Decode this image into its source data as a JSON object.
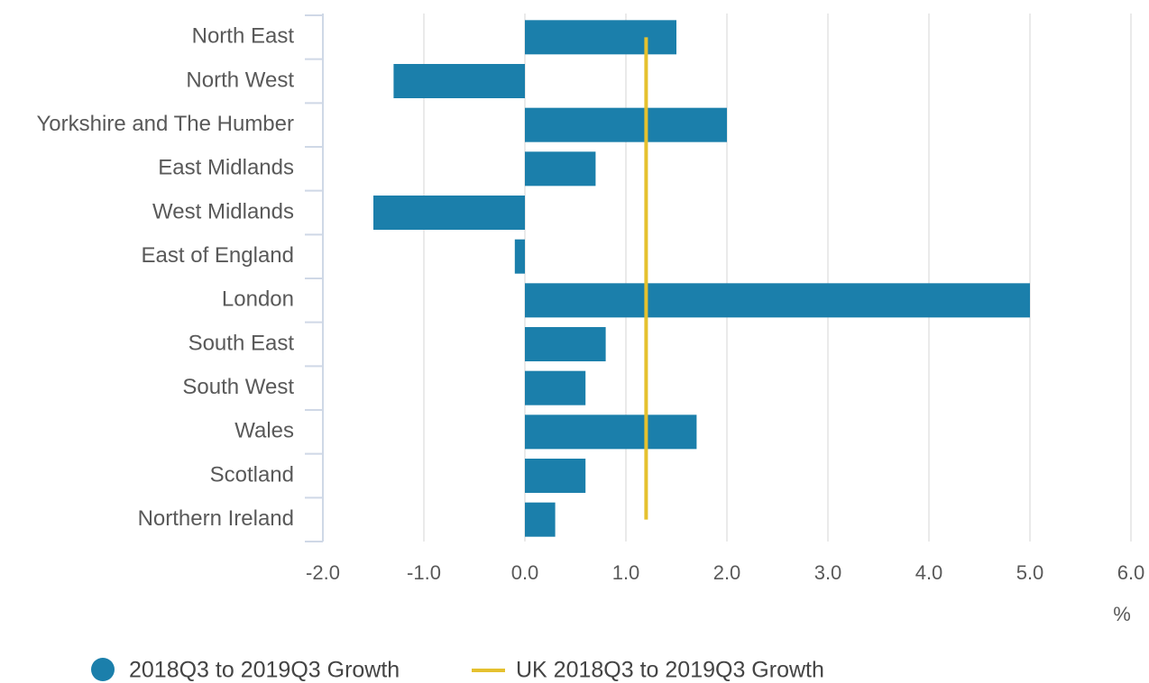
{
  "chart_data": {
    "type": "hbar",
    "categories": [
      "North East",
      "North West",
      "Yorkshire and The Humber",
      "East Midlands",
      "West Midlands",
      "East of England",
      "London",
      "South East",
      "South West",
      "Wales",
      "Scotland",
      "Northern Ireland"
    ],
    "series": [
      {
        "name": "2018Q3 to 2019Q3 Growth",
        "color": "#1b7fab",
        "values": [
          1.5,
          -1.3,
          2.0,
          0.7,
          -1.5,
          -0.1,
          5.0,
          0.8,
          0.6,
          1.7,
          0.6,
          0.3
        ]
      }
    ],
    "reference_line": {
      "name": "UK 2018Q3 to 2019Q3 Growth",
      "color": "#e5c12f",
      "value": 1.2
    },
    "xlim": [
      -2,
      6
    ],
    "xticks": [
      {
        "value": -2,
        "label": "-2.0"
      },
      {
        "value": -1,
        "label": "-1.0"
      },
      {
        "value": 0,
        "label": "0.0"
      },
      {
        "value": 1,
        "label": "1.0"
      },
      {
        "value": 2,
        "label": "2.0"
      },
      {
        "value": 3,
        "label": "3.0"
      },
      {
        "value": 4,
        "label": "4.0"
      },
      {
        "value": 5,
        "label": "5.0"
      },
      {
        "value": 6,
        "label": "6.0"
      }
    ],
    "x_axis_label": "%",
    "grid": true
  }
}
